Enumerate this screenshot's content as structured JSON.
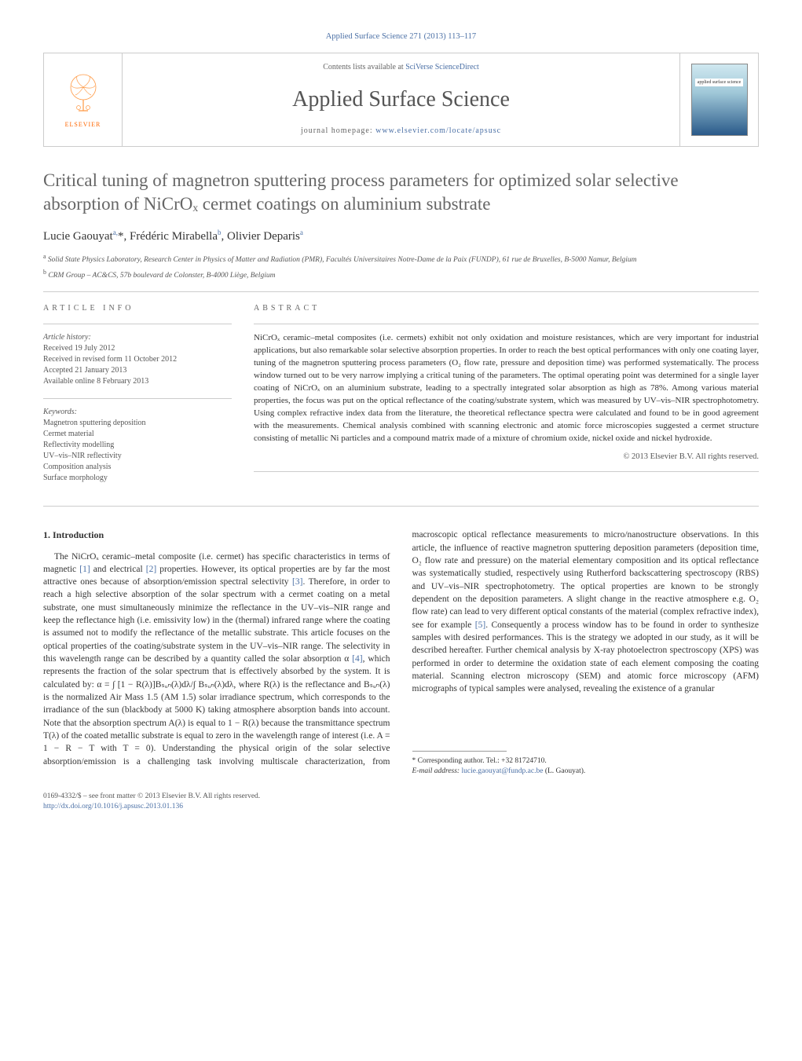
{
  "journal_ref": "Applied Surface Science 271 (2013) 113–117",
  "header": {
    "elsevier": "ELSEVIER",
    "contents_prefix": "Contents lists available at ",
    "contents_link": "SciVerse ScienceDirect",
    "journal_name": "Applied Surface Science",
    "homepage_prefix": "journal homepage: ",
    "homepage_link": "www.elsevier.com/locate/apsusc",
    "cover_text": "applied surface science"
  },
  "title": "Critical tuning of magnetron sputtering process parameters for optimized solar selective absorption of NiCrOₓ cermet coatings on aluminium substrate",
  "authors_html": "Lucie Gaouyat<sup>a,</sup>*, Frédéric Mirabella<sup>b</sup>, Olivier Deparis<sup>a</sup>",
  "affiliations": {
    "a": "Solid State Physics Laboratory, Research Center in Physics of Matter and Radiation (PMR), Facultés Universitaires Notre-Dame de la Paix (FUNDP), 61 rue de Bruxelles, B-5000 Namur, Belgium",
    "b": "CRM Group – AC&CS, 57b boulevard de Colonster, B-4000 Liège, Belgium"
  },
  "article_info": {
    "label": "ARTICLE INFO",
    "history_label": "Article history:",
    "history": [
      "Received 19 July 2012",
      "Received in revised form 11 October 2012",
      "Accepted 21 January 2013",
      "Available online 8 February 2013"
    ],
    "keywords_label": "Keywords:",
    "keywords": [
      "Magnetron sputtering deposition",
      "Cermet material",
      "Reflectivity modelling",
      "UV–vis–NIR reflectivity",
      "Composition analysis",
      "Surface morphology"
    ]
  },
  "abstract": {
    "label": "ABSTRACT",
    "text": "NiCrOₓ ceramic–metal composites (i.e. cermets) exhibit not only oxidation and moisture resistances, which are very important for industrial applications, but also remarkable solar selective absorption properties. In order to reach the best optical performances with only one coating layer, tuning of the magnetron sputtering process parameters (O₂ flow rate, pressure and deposition time) was performed systematically. The process window turned out to be very narrow implying a critical tuning of the parameters. The optimal operating point was determined for a single layer coating of NiCrOₓ on an aluminium substrate, leading to a spectrally integrated solar absorption as high as 78%. Among various material properties, the focus was put on the optical reflectance of the coating/substrate system, which was measured by UV–vis–NIR spectrophotometry. Using complex refractive index data from the literature, the theoretical reflectance spectra were calculated and found to be in good agreement with the measurements. Chemical analysis combined with scanning electronic and atomic force microscopies suggested a cermet structure consisting of metallic Ni particles and a compound matrix made of a mixture of chromium oxide, nickel oxide and nickel hydroxide.",
    "copyright": "© 2013 Elsevier B.V. All rights reserved."
  },
  "body": {
    "section_heading": "1. Introduction",
    "para1_pre": "The NiCrOₓ ceramic–metal composite (i.e. cermet) has specific characteristics in terms of magnetic ",
    "ref1": "[1]",
    "para1_mid1": " and electrical ",
    "ref2": "[2]",
    "para1_mid2": " properties. However, its optical properties are by far the most attractive ones because of absorption/emission spectral selectivity ",
    "ref3": "[3]",
    "para1_mid3": ". Therefore, in order to reach a high selective absorption of the solar spectrum with a cermet coating on a metal substrate, one must simultaneously minimize the reflectance in the UV–vis–NIR range and keep the reflectance high (i.e. emissivity low) in the (thermal) infrared range where the coating is assumed not to modify the reflectance of the metallic substrate. This article focuses on the optical properties of the coating/substrate system in the UV–vis–NIR range. The selectivity in this wavelength range can be described by a quantity called the solar absorption α ",
    "ref4": "[4]",
    "para1_post": ", which represents the fraction of the solar spectrum that is effectively absorbed by the system. It is calculated by: α = ∫ [1 − R(λ)]Bₛᵤₙ(λ)dλ/∫ Bₛᵤₙ(λ)dλ, where R(λ) is the reflectance and Bₛᵤₙ(λ) is the normalized Air Mass 1.5 (AM 1.5) solar irradiance spectrum, which corresponds to the irradiance of the sun (blackbody at 5000 K) taking atmosphere absorption bands",
    "para2_pre": "into account. Note that the absorption spectrum A(λ) is equal to 1 − R(λ) because the transmittance spectrum T(λ) of the coated metallic substrate is equal to zero in the wavelength range of interest (i.e. A = 1 − R − T with T = 0). Understanding the physical origin of the solar selective absorption/emission is a challenging task involving multiscale characterization, from macroscopic optical reflectance measurements to micro/nanostructure observations. In this article, the influence of reactive magnetron sputtering deposition parameters (deposition time, O₂ flow rate and pressure) on the material elementary composition and its optical reflectance was systematically studied, respectively using Rutherford backscattering spectroscopy (RBS) and UV–vis–NIR spectrophotometry. The optical properties are known to be strongly dependent on the deposition parameters. A slight change in the reactive atmosphere e.g. O₂ flow rate) can lead to very different optical constants of the material (complex refractive index), see for example ",
    "ref5": "[5]",
    "para2_post": ". Consequently a process window has to be found in order to synthesize samples with desired performances. This is the strategy we adopted in our study, as it will be described hereafter. Further chemical analysis by X-ray photoelectron spectroscopy (XPS) was performed in order to determine the oxidation state of each element composing the coating material. Scanning electron microscopy (SEM) and atomic force microscopy (AFM) micrographs of typical samples were analysed, revealing the existence of a granular"
  },
  "corresponding": {
    "label": "* Corresponding author. Tel.: +32 81724710.",
    "email_label": "E-mail address: ",
    "email": "lucie.gaouyat@fundp.ac.be",
    "email_suffix": " (L. Gaouyat)."
  },
  "footer": {
    "issn": "0169-4332/$ – see front matter © 2013 Elsevier B.V. All rights reserved.",
    "doi_label": "http://dx.doi.org/",
    "doi": "10.1016/j.apsusc.2013.01.136"
  },
  "colors": {
    "link": "#4a6fa5",
    "text": "#333333",
    "heading_gray": "#666666",
    "elsevier_orange": "#ff6600"
  }
}
